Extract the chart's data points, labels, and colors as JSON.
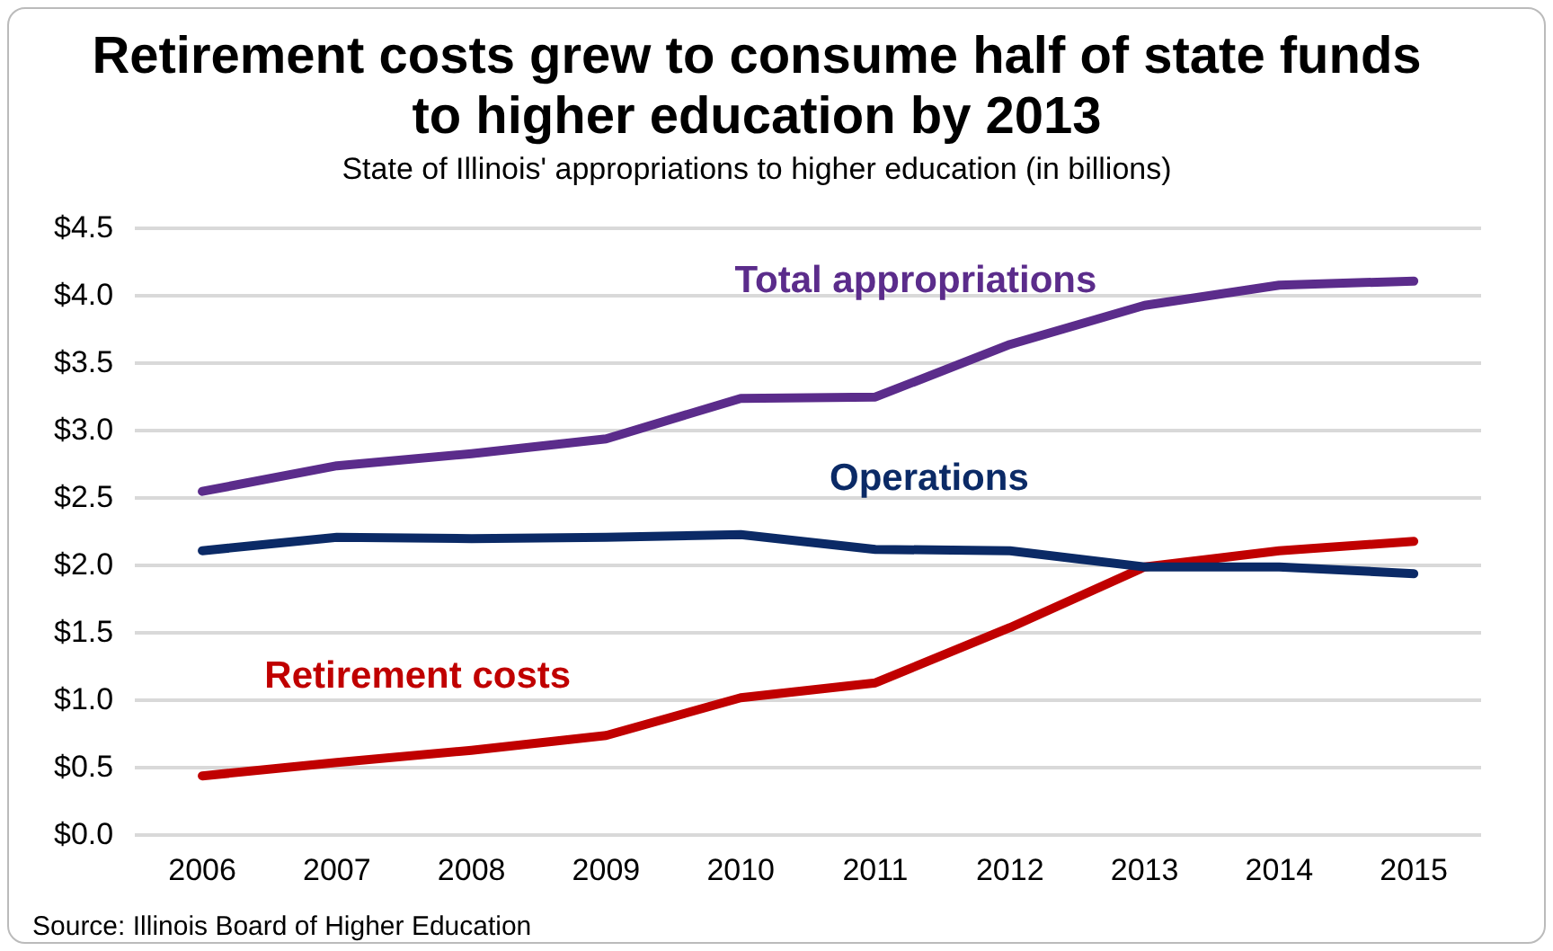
{
  "chart_data": {
    "type": "line",
    "title": "Retirement costs grew to consume half of state funds\nto higher education by 2013",
    "subtitle": "State of Illinois' appropriations to higher education (in billions)",
    "categories": [
      "2006",
      "2007",
      "2008",
      "2009",
      "2010",
      "2011",
      "2012",
      "2013",
      "2014",
      "2015"
    ],
    "series": [
      {
        "name": "Total appropriations",
        "color": "#5b2c8b",
        "values": [
          2.55,
          2.74,
          2.83,
          2.94,
          3.24,
          3.25,
          3.64,
          3.93,
          4.08,
          4.11
        ]
      },
      {
        "name": "Operations",
        "color": "#0b2a66",
        "values": [
          2.11,
          2.21,
          2.2,
          2.21,
          2.23,
          2.12,
          2.11,
          1.99,
          1.99,
          1.94
        ]
      },
      {
        "name": "Retirement costs",
        "color": "#c00000",
        "values": [
          0.44,
          0.54,
          0.63,
          0.74,
          1.02,
          1.13,
          1.54,
          1.99,
          2.11,
          2.18
        ]
      }
    ],
    "ylim": [
      0,
      4.5
    ],
    "yticks": [
      {
        "value": 0,
        "label": "$0.0"
      },
      {
        "value": 0.5,
        "label": "$0.5"
      },
      {
        "value": 1,
        "label": "$1.0"
      },
      {
        "value": 1.5,
        "label": "$1.5"
      },
      {
        "value": 2,
        "label": "$2.0"
      },
      {
        "value": 2.5,
        "label": "$2.5"
      },
      {
        "value": 3,
        "label": "$3.0"
      },
      {
        "value": 3.5,
        "label": "$3.5"
      },
      {
        "value": 4,
        "label": "$4.0"
      },
      {
        "value": 4.5,
        "label": "$4.5"
      }
    ],
    "grid": "y",
    "legend": false,
    "marker": "none",
    "line_style": "solid",
    "annotations": [
      "Source: Illinois Board of Higher Education"
    ]
  }
}
